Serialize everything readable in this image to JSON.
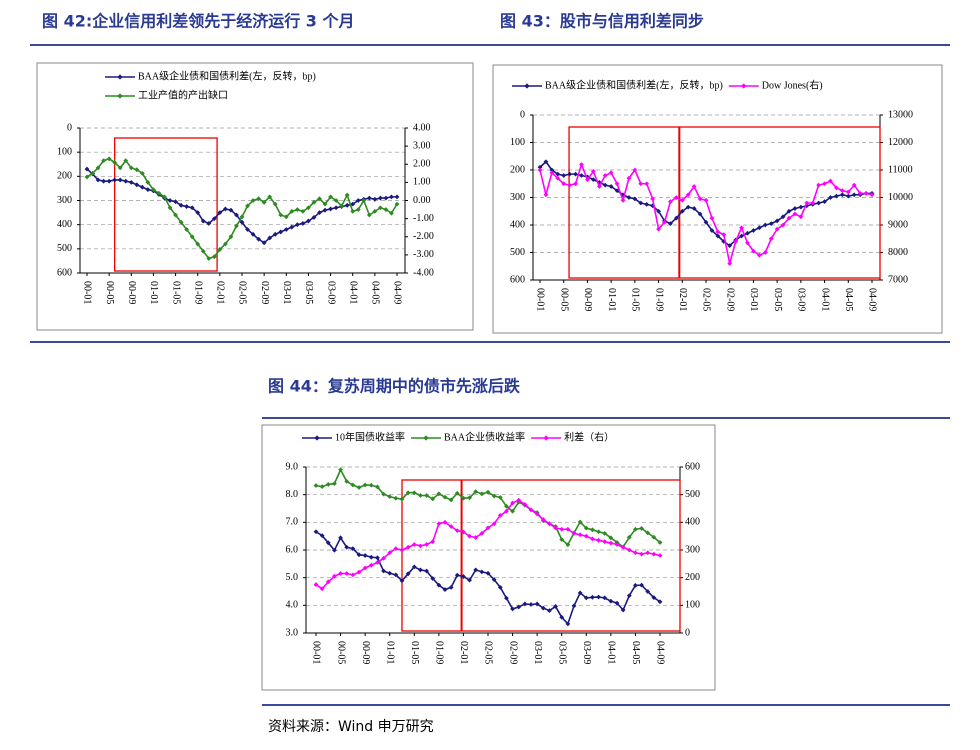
{
  "source": "资料来源：Wind 申万研究",
  "chart_data": [
    {
      "type": "line",
      "title": "图 42:企业信用利差领先于经济运行 3 个月",
      "categories": [
        "00-01",
        null,
        null,
        null,
        "00-05",
        null,
        null,
        null,
        "00-09",
        null,
        null,
        null,
        "01-01",
        null,
        null,
        null,
        "01-05",
        null,
        null,
        null,
        "01-09",
        null,
        null,
        null,
        "02-01",
        null,
        null,
        null,
        "02-05",
        null,
        null,
        null,
        "02-09",
        null,
        null,
        null,
        "03-01",
        null,
        null,
        null,
        "03-05",
        null,
        null,
        null,
        "03-09",
        null,
        null,
        null,
        "04-01",
        null,
        null,
        null,
        "04-05",
        null,
        null,
        null,
        "04-09"
      ],
      "ylim": [
        0,
        600
      ],
      "y_reversed": true,
      "yticks": [
        0,
        100,
        200,
        300,
        400,
        500,
        600
      ],
      "y2lim": [
        -4,
        4
      ],
      "y2ticks": [
        {
          "value": 4,
          "label": "4.00"
        },
        {
          "value": 3,
          "label": "3.00"
        },
        {
          "value": 2,
          "label": "2.00"
        },
        {
          "value": 1,
          "label": "1.00"
        },
        {
          "value": 0,
          "label": "0.00"
        },
        {
          "value": -1,
          "label": "-1.00"
        },
        {
          "value": -2,
          "label": "-2.00"
        },
        {
          "value": -3,
          "label": "-3.00"
        },
        {
          "value": -4,
          "label": "-4.00"
        }
      ],
      "grid": true,
      "legend": "top-left",
      "series": [
        {
          "name": "BAA级企业债和国债利差(左，反转，bp)",
          "color": "#1a1a80",
          "values": [
            170,
            190,
            215,
            220,
            220,
            215,
            215,
            220,
            225,
            235,
            245,
            255,
            260,
            275,
            290,
            300,
            305,
            320,
            325,
            330,
            350,
            385,
            395,
            375,
            350,
            335,
            340,
            360,
            390,
            420,
            440,
            460,
            475,
            455,
            440,
            430,
            420,
            410,
            400,
            395,
            385,
            370,
            350,
            340,
            335,
            330,
            325,
            320,
            315,
            300,
            295,
            290,
            295,
            290,
            290,
            285,
            285
          ]
        },
        {
          "name": "工业产值的产出缺口",
          "color": "#2e8b22",
          "axis": "y2",
          "values": [
            1.3,
            1.5,
            1.8,
            2.2,
            2.3,
            2.1,
            1.8,
            2.2,
            1.8,
            1.7,
            1.5,
            1.0,
            0.6,
            0.4,
            0.2,
            -0.4,
            -0.8,
            -1.2,
            -1.6,
            -2.0,
            -2.4,
            -2.8,
            -3.2,
            -3.1,
            -2.7,
            -2.4,
            -2.0,
            -1.4,
            -0.9,
            -0.3,
            0.0,
            0.1,
            -0.1,
            0.2,
            -0.2,
            -0.8,
            -0.9,
            -0.6,
            -0.5,
            -0.6,
            -0.4,
            -0.1,
            0.1,
            -0.2,
            0.2,
            0.0,
            -0.3,
            0.3,
            -0.6,
            -0.5,
            0.0,
            -0.8,
            -0.6,
            -0.4,
            -0.5,
            -0.7,
            -0.2
          ]
        }
      ]
    },
    {
      "type": "line",
      "title": "图 43：股市与信用利差同步",
      "categories": [
        "00-01",
        null,
        null,
        null,
        "00-05",
        null,
        null,
        null,
        "00-09",
        null,
        null,
        null,
        "01-01",
        null,
        null,
        null,
        "01-05",
        null,
        null,
        null,
        "01-09",
        null,
        null,
        null,
        "02-01",
        null,
        null,
        null,
        "02-05",
        null,
        null,
        null,
        "02-09",
        null,
        null,
        null,
        "03-01",
        null,
        null,
        null,
        "03-05",
        null,
        null,
        null,
        "03-09",
        null,
        null,
        null,
        "04-01",
        null,
        null,
        null,
        "04-05",
        null,
        null,
        null,
        "04-09"
      ],
      "ylim": [
        0,
        600
      ],
      "y_reversed": true,
      "yticks": [
        0,
        100,
        200,
        300,
        400,
        500,
        600
      ],
      "y2lim": [
        7000,
        13000
      ],
      "y2ticks": [
        7000,
        8000,
        9000,
        10000,
        11000,
        12000,
        13000
      ],
      "grid": true,
      "legend": "top",
      "series": [
        {
          "name": "BAA级企业债和国债利差(左，反转，bp)",
          "color": "#1a1a80",
          "values": [
            190,
            170,
            200,
            215,
            220,
            215,
            215,
            220,
            225,
            235,
            245,
            255,
            260,
            275,
            290,
            300,
            305,
            320,
            325,
            330,
            350,
            385,
            395,
            375,
            350,
            335,
            340,
            360,
            390,
            420,
            440,
            460,
            475,
            455,
            440,
            430,
            420,
            410,
            400,
            395,
            385,
            370,
            350,
            340,
            335,
            330,
            325,
            320,
            315,
            300,
            295,
            290,
            295,
            290,
            290,
            285,
            285
          ]
        },
        {
          "name": "Dow Jones(右)",
          "color": "#ff00ff",
          "axis": "y2",
          "values": [
            11000,
            10100,
            10900,
            10700,
            10500,
            10450,
            10500,
            11200,
            10650,
            10950,
            10400,
            10800,
            10900,
            10500,
            9900,
            10700,
            11000,
            10500,
            10500,
            9950,
            8850,
            9100,
            9850,
            10000,
            9900,
            10100,
            10400,
            9950,
            9900,
            9250,
            8750,
            8650,
            7600,
            8400,
            8900,
            8350,
            8050,
            7900,
            8000,
            8500,
            8850,
            9000,
            9250,
            9400,
            9300,
            9800,
            9800,
            10450,
            10500,
            10600,
            10350,
            10250,
            10200,
            10450,
            10150,
            10150,
            10100
          ]
        }
      ]
    },
    {
      "type": "line",
      "title": "图 44：复苏周期中的债市先涨后跌",
      "categories": [
        "00-01",
        null,
        null,
        null,
        "00-05",
        null,
        null,
        null,
        "00-09",
        null,
        null,
        null,
        "01-01",
        null,
        null,
        null,
        "01-05",
        null,
        null,
        null,
        "01-09",
        null,
        null,
        null,
        "02-01",
        null,
        null,
        null,
        "02-05",
        null,
        null,
        null,
        "02-09",
        null,
        null,
        null,
        "03-01",
        null,
        null,
        null,
        "03-05",
        null,
        null,
        null,
        "03-09",
        null,
        null,
        null,
        "04-01",
        null,
        null,
        null,
        "04-05",
        null,
        null,
        null,
        "04-09"
      ],
      "ylim": [
        3,
        9
      ],
      "yticks": [
        {
          "value": 9,
          "label": "9.0"
        },
        {
          "value": 8,
          "label": "8.0"
        },
        {
          "value": 7,
          "label": "7.0"
        },
        {
          "value": 6,
          "label": "6.0"
        },
        {
          "value": 5,
          "label": "5.0"
        },
        {
          "value": 4,
          "label": "4.0"
        },
        {
          "value": 3,
          "label": "3.0"
        }
      ],
      "y2lim": [
        0,
        600
      ],
      "y2ticks": [
        0,
        100,
        200,
        300,
        400,
        500,
        600
      ],
      "grid": true,
      "legend": "top",
      "series": [
        {
          "name": "10年国债收益率",
          "color": "#1a1a80",
          "values": [
            6.66,
            6.52,
            6.26,
            5.99,
            6.44,
            6.1,
            6.05,
            5.83,
            5.8,
            5.74,
            5.72,
            5.24,
            5.16,
            5.1,
            4.89,
            5.14,
            5.39,
            5.28,
            5.24,
            4.97,
            4.73,
            4.57,
            4.65,
            5.09,
            5.04,
            4.91,
            5.28,
            5.21,
            5.16,
            4.93,
            4.65,
            4.26,
            3.87,
            3.94,
            4.05,
            4.03,
            4.05,
            3.9,
            3.81,
            3.96,
            3.57,
            3.33,
            3.98,
            4.45,
            4.27,
            4.29,
            4.3,
            4.27,
            4.15,
            4.08,
            3.83,
            4.35,
            4.72,
            4.73,
            4.5,
            4.28,
            4.13
          ]
        },
        {
          "name": "BAA企业债收益率",
          "color": "#2e8b22",
          "values": [
            8.33,
            8.29,
            8.37,
            8.4,
            8.9,
            8.48,
            8.35,
            8.26,
            8.35,
            8.34,
            8.28,
            8.02,
            7.93,
            7.87,
            7.84,
            8.07,
            8.07,
            7.97,
            7.97,
            7.85,
            8.03,
            7.91,
            7.81,
            8.05,
            7.87,
            7.89,
            8.11,
            8.03,
            8.09,
            7.95,
            7.9,
            7.58,
            7.4,
            7.73,
            7.62,
            7.45,
            7.35,
            7.06,
            6.95,
            6.85,
            6.38,
            6.19,
            6.62,
            7.01,
            6.79,
            6.73,
            6.66,
            6.6,
            6.44,
            6.27,
            6.11,
            6.46,
            6.75,
            6.78,
            6.62,
            6.46,
            6.27
          ]
        },
        {
          "name": "利差（右）",
          "color": "#ff00ff",
          "axis": "y2",
          "values": [
            175,
            160,
            185,
            205,
            215,
            215,
            210,
            220,
            235,
            245,
            255,
            270,
            290,
            305,
            300,
            310,
            320,
            315,
            320,
            330,
            395,
            400,
            385,
            370,
            365,
            350,
            345,
            360,
            380,
            395,
            425,
            440,
            470,
            480,
            465,
            445,
            430,
            410,
            395,
            380,
            375,
            375,
            360,
            355,
            350,
            340,
            335,
            330,
            325,
            320,
            310,
            300,
            290,
            285,
            290,
            285,
            280
          ]
        }
      ]
    }
  ]
}
